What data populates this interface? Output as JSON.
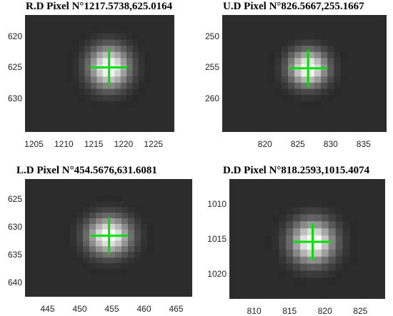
{
  "panels": [
    {
      "id": "rd",
      "title": "R.D Pixel N°1217.5738,625.0164",
      "center": [
        1217.5738,
        625.0164
      ],
      "x_range": [
        1203.5,
        1228.5
      ],
      "y_range": [
        616.5,
        635.5
      ],
      "spot_sigma": 2.3,
      "xticks": [
        {
          "label": "1205",
          "value": 1205
        },
        {
          "label": "1210",
          "value": 1210
        },
        {
          "label": "1215",
          "value": 1215
        },
        {
          "label": "1220",
          "value": 1220
        },
        {
          "label": "1225",
          "value": 1225
        }
      ],
      "yticks": [
        {
          "label": "620",
          "value": 620
        },
        {
          "label": "625",
          "value": 625
        },
        {
          "label": "630",
          "value": 630
        }
      ]
    },
    {
      "id": "ud",
      "title": "U.D Pixel N°826.5667,255.1667",
      "center": [
        826.5667,
        255.1667
      ],
      "x_range": [
        813.5,
        838.5
      ],
      "y_range": [
        246.5,
        265.5
      ],
      "spot_sigma": 2.0,
      "xticks": [
        {
          "label": "820",
          "value": 820
        },
        {
          "label": "825",
          "value": 825
        },
        {
          "label": "830",
          "value": 830
        },
        {
          "label": "835",
          "value": 835
        }
      ],
      "yticks": [
        {
          "label": "250",
          "value": 250
        },
        {
          "label": "255",
          "value": 255
        },
        {
          "label": "260",
          "value": 260
        }
      ]
    },
    {
      "id": "ld",
      "title": "L.D Pixel N°454.5676,631.6081",
      "center": [
        454.5676,
        631.6081
      ],
      "x_range": [
        441.5,
        467.5
      ],
      "y_range": [
        621.5,
        642.5
      ],
      "spot_sigma": 2.3,
      "xticks": [
        {
          "label": "445",
          "value": 445
        },
        {
          "label": "450",
          "value": 450
        },
        {
          "label": "455",
          "value": 455
        },
        {
          "label": "460",
          "value": 460
        },
        {
          "label": "465",
          "value": 465
        }
      ],
      "yticks": [
        {
          "label": "625",
          "value": 625
        },
        {
          "label": "630",
          "value": 630
        },
        {
          "label": "635",
          "value": 635
        },
        {
          "label": "640",
          "value": 640
        }
      ]
    },
    {
      "id": "dd",
      "title": "D.D Pixel N°818.2593,1015.4074",
      "center": [
        818.2593,
        1015.4074
      ],
      "x_range": [
        806.5,
        828.5
      ],
      "y_range": [
        1006.5,
        1023.5
      ],
      "spot_sigma": 2.1,
      "xticks": [
        {
          "label": "810",
          "value": 810
        },
        {
          "label": "815",
          "value": 815
        },
        {
          "label": "820",
          "value": 820
        },
        {
          "label": "825",
          "value": 825
        }
      ],
      "yticks": [
        {
          "label": "1010",
          "value": 1010
        },
        {
          "label": "1015",
          "value": 1015
        },
        {
          "label": "1020",
          "value": 1020
        }
      ]
    }
  ],
  "colors": {
    "crosshair": "#00e000",
    "background": "#2c2c2c"
  }
}
